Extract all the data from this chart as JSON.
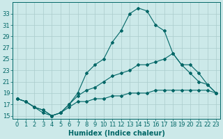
{
  "xlabel": "Humidex (Indice chaleur)",
  "background_color": "#cce9e9",
  "grid_color": "#aacccc",
  "line_color": "#006666",
  "x_values": [
    0,
    1,
    2,
    3,
    4,
    5,
    6,
    7,
    8,
    9,
    10,
    11,
    12,
    13,
    14,
    15,
    16,
    17,
    18,
    19,
    20,
    21,
    22,
    23
  ],
  "line1": [
    18,
    17.5,
    16.5,
    16,
    15,
    15.5,
    16.5,
    17.5,
    17.5,
    18,
    18,
    18.5,
    18.5,
    19,
    19,
    19,
    19.5,
    19.5,
    19.5,
    19.5,
    19.5,
    19.5,
    19.5,
    19
  ],
  "line2": [
    18,
    17.5,
    16.5,
    16,
    15,
    15.5,
    17,
    18.5,
    19.5,
    20,
    21,
    22,
    22.5,
    23,
    24,
    24,
    24.5,
    25,
    26,
    24,
    22.5,
    21,
    20.5,
    19
  ],
  "line3": [
    18,
    17.5,
    16.5,
    15.5,
    15,
    15.5,
    17,
    19,
    22.5,
    24,
    25,
    28,
    30,
    33,
    34,
    33.5,
    31,
    30,
    26,
    24,
    24,
    22.5,
    20.5,
    19
  ],
  "xlim": [
    -0.5,
    23.5
  ],
  "ylim": [
    14.5,
    35
  ],
  "yticks": [
    15,
    17,
    19,
    21,
    23,
    25,
    27,
    29,
    31,
    33
  ],
  "xticks": [
    0,
    1,
    2,
    3,
    4,
    5,
    6,
    7,
    8,
    9,
    10,
    11,
    12,
    13,
    14,
    15,
    16,
    17,
    18,
    19,
    20,
    21,
    22,
    23
  ],
  "xlabel_fontsize": 7,
  "tick_fontsize": 6,
  "marker": "D",
  "markersize": 2,
  "linewidth": 0.8
}
